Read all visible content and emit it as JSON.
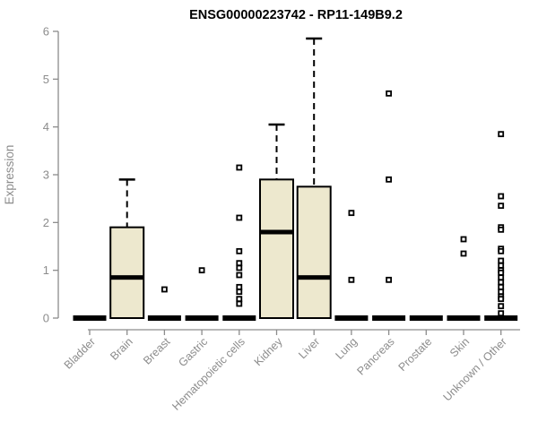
{
  "colors": {
    "box_fill": "#EDE8CE",
    "box_border": "#000000",
    "median": "#000000",
    "whisker": "#000000",
    "outlier_stroke": "#000000",
    "outlier_fill": "#ffffff",
    "axis": "#8C8C8C",
    "tick_label": "#8C8C8C",
    "title": "#000000",
    "background": "#ffffff"
  },
  "chart_data": {
    "type": "boxplot",
    "title": "ENSG00000223742 - RP11-149B9.2",
    "ylabel": "Expression",
    "xlabel": "",
    "ylim": [
      0,
      6
    ],
    "yticks": [
      "0",
      "1",
      "2",
      "3",
      "4",
      "5",
      "6"
    ],
    "grid": false,
    "legend": false,
    "categories": [
      "Bladder",
      "Brain",
      "Breast",
      "Gastric",
      "Hematopoietic cells",
      "Kidney",
      "Liver",
      "Lung",
      "Pancreas",
      "Prostate",
      "Skin",
      "Unknown / Other"
    ],
    "boxes": [
      {
        "category": "Bladder",
        "whisker_low": 0,
        "q1": 0,
        "median": 0,
        "q3": 0,
        "whisker_high": 0,
        "outliers": []
      },
      {
        "category": "Brain",
        "whisker_low": 0,
        "q1": 0,
        "median": 0.85,
        "q3": 1.9,
        "whisker_high": 2.9,
        "outliers": []
      },
      {
        "category": "Breast",
        "whisker_low": 0,
        "q1": 0,
        "median": 0,
        "q3": 0,
        "whisker_high": 0,
        "outliers": [
          0.6
        ]
      },
      {
        "category": "Gastric",
        "whisker_low": 0,
        "q1": 0,
        "median": 0,
        "q3": 0,
        "whisker_high": 0,
        "outliers": [
          1.0
        ]
      },
      {
        "category": "Hematopoietic cells",
        "whisker_low": 0,
        "q1": 0,
        "median": 0,
        "q3": 0,
        "whisker_high": 0,
        "outliers": [
          3.15,
          2.1,
          1.4,
          1.15,
          1.05,
          0.9,
          0.65,
          0.55,
          0.4,
          0.3
        ]
      },
      {
        "category": "Kidney",
        "whisker_low": 0,
        "q1": 0,
        "median": 1.8,
        "q3": 2.9,
        "whisker_high": 4.05,
        "outliers": []
      },
      {
        "category": "Liver",
        "whisker_low": 0,
        "q1": 0,
        "median": 0.85,
        "q3": 2.75,
        "whisker_high": 5.85,
        "outliers": []
      },
      {
        "category": "Lung",
        "whisker_low": 0,
        "q1": 0,
        "median": 0,
        "q3": 0,
        "whisker_high": 0,
        "outliers": [
          2.2,
          0.8
        ]
      },
      {
        "category": "Pancreas",
        "whisker_low": 0,
        "q1": 0,
        "median": 0,
        "q3": 0,
        "whisker_high": 0,
        "outliers": [
          4.7,
          2.9,
          0.8
        ]
      },
      {
        "category": "Prostate",
        "whisker_low": 0,
        "q1": 0,
        "median": 0,
        "q3": 0,
        "whisker_high": 0,
        "outliers": []
      },
      {
        "category": "Skin",
        "whisker_low": 0,
        "q1": 0,
        "median": 0,
        "q3": 0,
        "whisker_high": 0,
        "outliers": [
          1.65,
          1.35
        ]
      },
      {
        "category": "Unknown / Other",
        "whisker_low": 0,
        "q1": 0,
        "median": 0,
        "q3": 0,
        "whisker_high": 0,
        "outliers": [
          3.85,
          2.55,
          2.35,
          1.9,
          1.85,
          1.45,
          1.4,
          1.2,
          1.1,
          1.0,
          0.95,
          0.85,
          0.75,
          0.65,
          0.55,
          0.45,
          0.4,
          0.25,
          0.1
        ]
      }
    ]
  }
}
